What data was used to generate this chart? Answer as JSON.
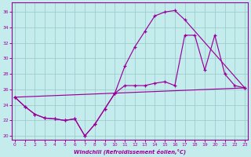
{
  "bg_color": "#c5ecec",
  "grid_color": "#9ecece",
  "line_color": "#990099",
  "xlim_min": -0.3,
  "xlim_max": 23.3,
  "ylim_min": 19.5,
  "ylim_max": 37.2,
  "xticks": [
    0,
    1,
    2,
    3,
    4,
    5,
    6,
    7,
    8,
    9,
    10,
    11,
    12,
    13,
    14,
    15,
    16,
    17,
    18,
    19,
    20,
    21,
    22,
    23
  ],
  "yticks": [
    20,
    22,
    24,
    26,
    28,
    30,
    32,
    34,
    36
  ],
  "xlabel": "Windchill (Refroidissement éolien,°C)",
  "curve1_x": [
    0,
    1,
    2,
    3,
    4,
    5,
    6,
    7,
    8,
    9,
    10,
    11,
    12,
    13,
    14,
    15,
    16,
    17,
    23
  ],
  "curve1_y": [
    25.0,
    23.8,
    22.8,
    22.3,
    22.2,
    22.0,
    22.2,
    20.0,
    21.5,
    23.5,
    25.5,
    29.0,
    31.5,
    33.5,
    35.5,
    36.0,
    36.2,
    35.0,
    26.2
  ],
  "curve2_x": [
    0,
    1,
    2,
    3,
    4,
    5,
    6,
    7,
    8,
    9,
    10,
    11,
    12,
    13,
    14,
    15,
    16,
    17,
    18,
    19,
    20,
    21,
    22,
    23
  ],
  "curve2_y": [
    25.0,
    23.8,
    22.8,
    22.3,
    22.2,
    22.0,
    22.2,
    20.0,
    21.5,
    23.5,
    25.5,
    26.5,
    26.5,
    26.5,
    26.8,
    27.0,
    26.5,
    33.0,
    33.0,
    28.5,
    33.0,
    28.0,
    26.5,
    26.2
  ],
  "curve3_x": [
    0,
    23
  ],
  "curve3_y": [
    25.0,
    26.2
  ]
}
